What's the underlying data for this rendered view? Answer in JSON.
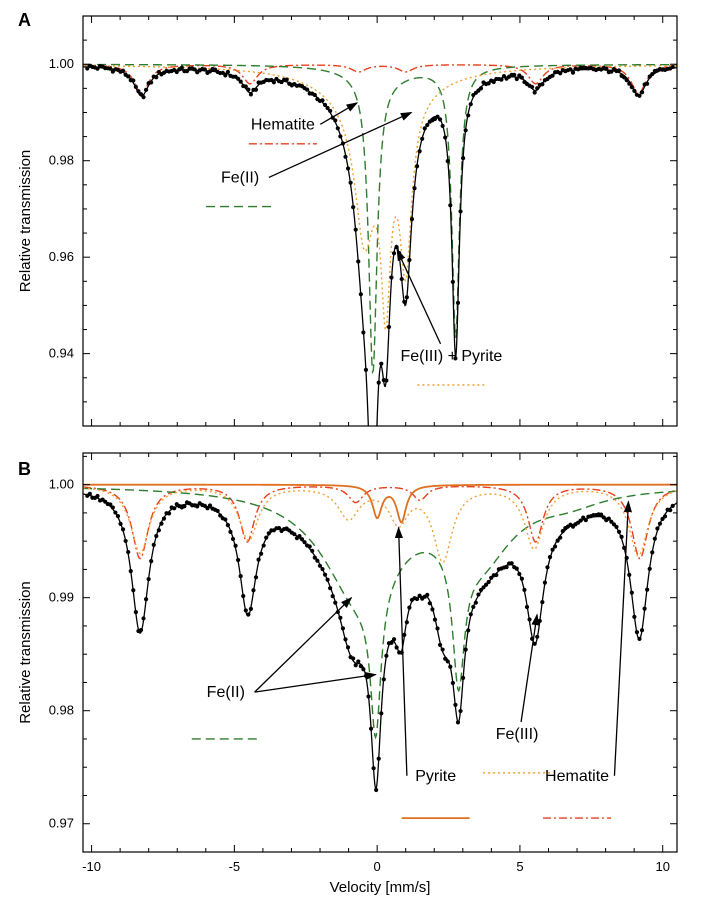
{
  "chart_data": [
    {
      "panel": "A",
      "type": "line",
      "xlabel": "Velocity [mm/s]",
      "ylabel": "Relative transmission",
      "xlim": [
        -10.3,
        10.5
      ],
      "ylim": [
        0.925,
        1.01
      ],
      "yticks": [
        {
          "v": 1.0,
          "label": "1.00"
        },
        {
          "v": 0.98,
          "label": "0.98"
        },
        {
          "v": 0.96,
          "label": "0.96"
        },
        {
          "v": 0.94,
          "label": "0.94"
        }
      ],
      "xticks": [
        -10,
        -5,
        0,
        5,
        10
      ],
      "grid": false,
      "components": [
        {
          "name": "Hematite",
          "color": "#e8401c",
          "style": "dashdot",
          "peaks": [
            [
              -8.25,
              0.006,
              0.32
            ],
            [
              -4.45,
              0.004,
              0.32
            ],
            [
              -0.65,
              0.0015,
              0.32
            ],
            [
              1.0,
              0.0015,
              0.32
            ],
            [
              5.55,
              0.004,
              0.32
            ],
            [
              9.15,
              0.006,
              0.32
            ]
          ]
        },
        {
          "name": "Fe(II)",
          "color": "#2e7d2e",
          "style": "dashed",
          "peaks": [
            [
              -0.15,
              0.062,
              0.18
            ],
            [
              0.3,
              0.002,
              1.4
            ],
            [
              2.75,
              0.056,
              0.16
            ]
          ]
        },
        {
          "name": "Fe(III) + Pyrite",
          "color": "#f0a030",
          "style": "dotted",
          "peaks": [
            [
              -0.45,
              0.026,
              0.4
            ],
            [
              0.3,
              0.036,
              0.2
            ],
            [
              1.0,
              0.033,
              0.25
            ],
            [
              0.0,
              0.01,
              1.6
            ]
          ]
        }
      ],
      "annotations": [
        {
          "text": "Hematite",
          "label_x": -3.3,
          "label_y": 0.9865,
          "arrow_to": [
            -0.7,
            0.992
          ],
          "legend_y": 0.9835
        },
        {
          "text": "Fe(II)",
          "label_x": -4.8,
          "label_y": 0.9755,
          "arrow_to": [
            1.2,
            0.99
          ],
          "legend_y": 0.9705
        },
        {
          "text": "Fe(III) + Pyrite",
          "label_x": 2.6,
          "label_y": 0.9385,
          "arrow_to": [
            0.7,
            0.9615
          ],
          "legend_y": 0.9335
        }
      ]
    },
    {
      "panel": "B",
      "type": "line",
      "xlabel": "Velocity [mm/s]",
      "ylabel": "Relative transmission",
      "xlim": [
        -10.3,
        10.5
      ],
      "ylim": [
        0.9675,
        1.0028
      ],
      "yticks": [
        {
          "v": 1.0,
          "label": "1.00"
        },
        {
          "v": 0.99,
          "label": "0.99"
        },
        {
          "v": 0.98,
          "label": "0.98"
        },
        {
          "v": 0.97,
          "label": "0.97"
        }
      ],
      "xticks": [
        -10,
        -5,
        0,
        5,
        10
      ],
      "xticklabels": [
        "-10",
        "-5",
        "0",
        "5",
        "10"
      ],
      "grid": false,
      "components": [
        {
          "name": "Hematite",
          "color": "#e8401c",
          "style": "dashdot",
          "peaks": [
            [
              -8.3,
              0.0065,
              0.35
            ],
            [
              -4.55,
              0.005,
              0.32
            ],
            [
              -0.75,
              0.0015,
              0.32
            ],
            [
              1.5,
              0.0013,
              0.3
            ],
            [
              5.55,
              0.005,
              0.32
            ],
            [
              9.2,
              0.0065,
              0.35
            ]
          ]
        },
        {
          "name": "Fe(II)",
          "color": "#2e7d2e",
          "style": "dashed",
          "peaks": [
            [
              -0.6,
              0.0097,
              1.6
            ],
            [
              -0.05,
              0.0128,
              0.22
            ],
            [
              2.85,
              0.0118,
              0.25
            ],
            [
              3.6,
              0.0058,
              1.4
            ],
            [
              6.7,
              0.001,
              1.5
            ]
          ]
        },
        {
          "name": "Fe(III)",
          "color": "#f0a030",
          "style": "dotted",
          "peaks": [
            [
              -8.3,
              0.006,
              0.4
            ],
            [
              -4.5,
              0.0048,
              0.4
            ],
            [
              -1.0,
              0.0028,
              0.45
            ],
            [
              0.75,
              0.0031,
              0.4
            ],
            [
              2.3,
              0.0065,
              0.4
            ],
            [
              5.5,
              0.0055,
              0.4
            ],
            [
              9.15,
              0.0062,
              0.4
            ]
          ]
        },
        {
          "name": "Pyrite",
          "color": "#e07020",
          "style": "solid",
          "peaks": [
            [
              0.0,
              0.0028,
              0.2
            ],
            [
              0.85,
              0.0032,
              0.2
            ]
          ]
        }
      ],
      "annotations": [
        {
          "text": "Fe(II)",
          "label_x": -5.3,
          "label_y": 0.9812,
          "arrow_to": [
            -0.9,
            0.99
          ],
          "arrow_to_2": [
            -0.05,
            0.9832
          ],
          "legend_y": 0.9775
        },
        {
          "text": "Fe(III)",
          "label_x": 4.9,
          "label_y": 0.9775,
          "arrow_to": [
            5.6,
            0.9885
          ],
          "legend_y": 0.9745
        },
        {
          "text": "Pyrite",
          "label_x": 2.05,
          "label_y": 0.9738,
          "arrow_to": [
            0.75,
            0.9962
          ],
          "legend_y": 0.9705
        },
        {
          "text": "Hematite",
          "label_x": 7.0,
          "label_y": 0.9738,
          "arrow_to": [
            8.8,
            0.9985
          ],
          "legend_y": 0.9705
        }
      ]
    }
  ]
}
